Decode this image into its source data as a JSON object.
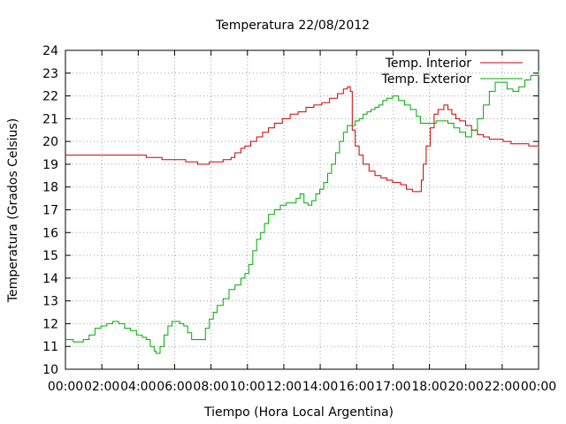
{
  "chart_data": {
    "type": "line",
    "title": "Temperatura 22/08/2012",
    "xlabel": "Tiempo (Hora Local Argentina)",
    "ylabel": "Temperatura (Grados Celsius)",
    "xlim": [
      0,
      24
    ],
    "ylim": [
      10,
      24
    ],
    "x_ticks": [
      "00:00",
      "02:00",
      "04:00",
      "06:00",
      "08:00",
      "10:00",
      "12:00",
      "14:00",
      "16:00",
      "17:00",
      "18:00",
      "20:00",
      "22:00",
      "00:00"
    ],
    "y_ticks": [
      "10",
      "11",
      "12",
      "13",
      "14",
      "15",
      "16",
      "17",
      "18",
      "19",
      "20",
      "21",
      "22",
      "23",
      "24"
    ],
    "grid": true,
    "legend_position": "top-right",
    "series": [
      {
        "name": "Temp. Interior",
        "color": "#cc0000",
        "x": [
          0.0,
          4.0,
          4.1,
          4.8,
          4.9,
          6.0,
          6.1,
          6.6,
          6.7,
          7.2,
          7.3,
          7.9,
          8.0,
          8.4,
          8.6,
          8.9,
          9.1,
          9.4,
          9.7,
          10.0,
          10.3,
          10.6,
          11.0,
          11.4,
          11.8,
          12.2,
          12.6,
          13.0,
          13.4,
          13.8,
          14.1,
          14.3,
          14.45,
          14.55,
          14.7,
          14.9,
          15.1,
          15.4,
          15.7,
          16.0,
          16.3,
          16.6,
          17.0,
          17.3,
          17.6,
          17.9,
          18.05,
          18.15,
          18.3,
          18.5,
          18.7,
          18.9,
          19.2,
          19.4,
          19.6,
          19.8,
          20.0,
          20.3,
          20.6,
          20.9,
          21.2,
          21.5,
          21.8,
          22.2,
          22.6,
          23.0,
          23.5,
          23.9,
          24.0
        ],
        "y": [
          19.4,
          19.4,
          19.3,
          19.3,
          19.2,
          19.2,
          19.1,
          19.1,
          19.0,
          19.0,
          19.1,
          19.1,
          19.2,
          19.3,
          19.5,
          19.7,
          19.8,
          20.0,
          20.2,
          20.4,
          20.6,
          20.8,
          21.0,
          21.2,
          21.3,
          21.5,
          21.6,
          21.7,
          21.9,
          22.1,
          22.3,
          22.4,
          22.2,
          20.5,
          19.8,
          19.4,
          19.0,
          18.7,
          18.5,
          18.4,
          18.3,
          18.2,
          18.1,
          17.9,
          17.8,
          17.8,
          18.3,
          19.0,
          19.8,
          20.6,
          21.2,
          21.4,
          21.6,
          21.4,
          21.2,
          21.0,
          20.9,
          20.7,
          20.5,
          20.3,
          20.2,
          20.1,
          20.1,
          20.0,
          19.9,
          19.9,
          19.8,
          19.8,
          19.7
        ]
      },
      {
        "name": "Temp. Exterior",
        "color": "#00aa00",
        "x": [
          0.0,
          0.4,
          0.9,
          1.2,
          1.5,
          1.8,
          2.1,
          2.4,
          2.7,
          3.0,
          3.3,
          3.6,
          3.9,
          4.1,
          4.3,
          4.5,
          4.6,
          4.8,
          5.0,
          5.2,
          5.4,
          5.6,
          5.8,
          6.0,
          6.2,
          6.4,
          6.6,
          6.9,
          7.1,
          7.3,
          7.5,
          7.7,
          8.0,
          8.3,
          8.6,
          8.9,
          9.1,
          9.3,
          9.5,
          9.7,
          9.9,
          10.1,
          10.3,
          10.6,
          10.9,
          11.2,
          11.5,
          11.7,
          11.9,
          12.1,
          12.3,
          12.5,
          12.7,
          12.9,
          13.1,
          13.3,
          13.5,
          13.7,
          13.9,
          14.1,
          14.3,
          14.5,
          14.7,
          14.9,
          15.1,
          15.3,
          15.5,
          15.7,
          15.9,
          16.1,
          16.3,
          16.6,
          16.9,
          17.2,
          17.5,
          17.8,
          18.0,
          18.2,
          18.5,
          18.8,
          19.1,
          19.4,
          19.7,
          20.0,
          20.3,
          20.6,
          20.9,
          21.2,
          21.5,
          21.8,
          22.1,
          22.4,
          22.7,
          23.0,
          23.3,
          23.6,
          24.0
        ],
        "y": [
          11.3,
          11.2,
          11.3,
          11.5,
          11.8,
          11.9,
          12.0,
          12.1,
          12.0,
          11.8,
          11.7,
          11.5,
          11.4,
          11.3,
          11.0,
          10.8,
          10.7,
          11.0,
          11.5,
          11.9,
          12.1,
          12.1,
          12.0,
          11.9,
          11.6,
          11.3,
          11.3,
          11.3,
          11.8,
          12.2,
          12.5,
          12.8,
          13.1,
          13.5,
          13.7,
          14.0,
          14.2,
          14.6,
          15.2,
          15.7,
          16.0,
          16.4,
          16.8,
          17.0,
          17.2,
          17.3,
          17.3,
          17.5,
          17.7,
          17.3,
          17.2,
          17.4,
          17.7,
          17.9,
          18.2,
          18.6,
          19.0,
          19.5,
          20.0,
          20.4,
          20.7,
          20.7,
          20.9,
          21.0,
          21.2,
          21.3,
          21.4,
          21.5,
          21.6,
          21.8,
          21.9,
          22.0,
          21.8,
          21.6,
          21.4,
          21.1,
          20.8,
          20.8,
          20.8,
          20.9,
          20.9,
          20.8,
          20.6,
          20.4,
          20.2,
          20.5,
          21.0,
          21.6,
          22.2,
          22.6,
          22.6,
          22.3,
          22.2,
          22.4,
          22.7,
          22.9,
          23.1
        ]
      }
    ]
  }
}
